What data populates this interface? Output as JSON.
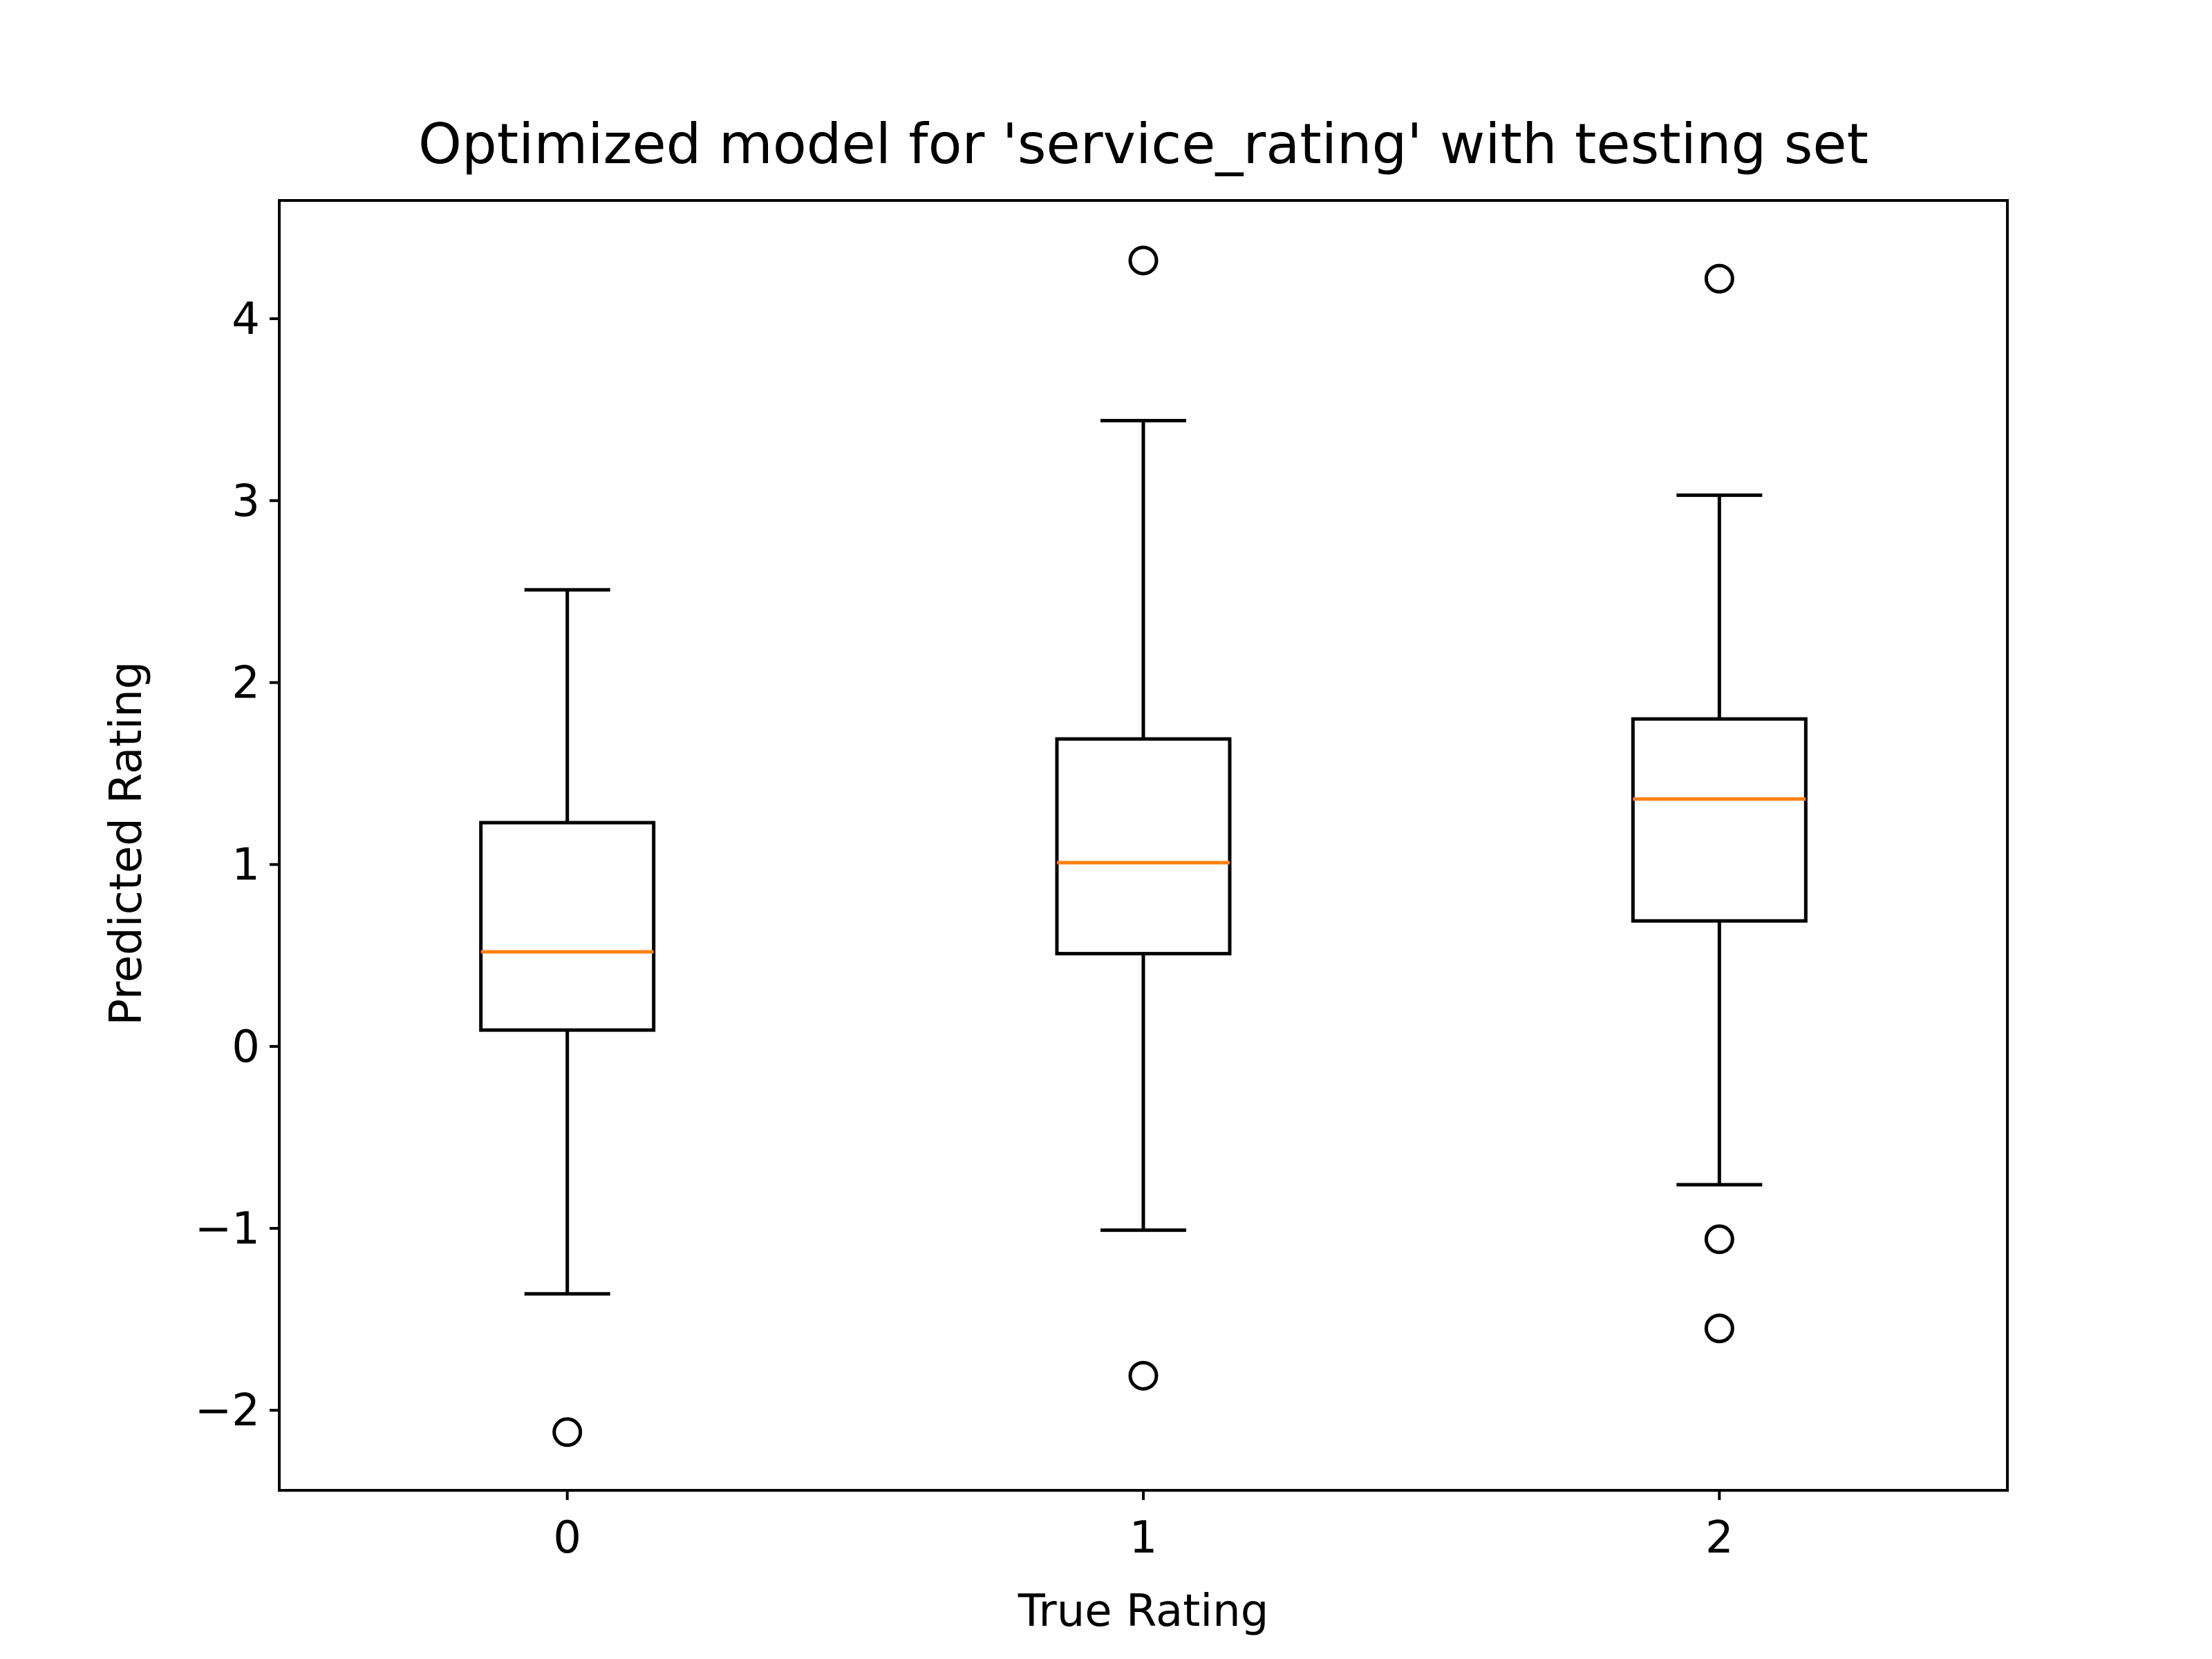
{
  "chart_data": {
    "type": "boxplot",
    "title": "Optimized model for 'service_rating' with testing set",
    "xlabel": "True Rating",
    "ylabel": "Predicted Rating",
    "categories": [
      "0",
      "1",
      "2"
    ],
    "boxes": [
      {
        "category": "0",
        "whisker_low": -1.36,
        "q1": 0.09,
        "median": 0.52,
        "q3": 1.23,
        "whisker_high": 2.51,
        "outliers": [
          -2.12
        ]
      },
      {
        "category": "1",
        "whisker_low": -1.01,
        "q1": 0.51,
        "median": 1.01,
        "q3": 1.69,
        "whisker_high": 3.44,
        "outliers": [
          -1.81,
          4.32
        ]
      },
      {
        "category": "2",
        "whisker_low": -0.76,
        "q1": 0.69,
        "median": 1.36,
        "q3": 1.8,
        "whisker_high": 3.03,
        "outliers": [
          -1.06,
          -1.55,
          4.22
        ]
      }
    ],
    "xlim": [
      -0.5,
      2.5
    ],
    "ylim": [
      -2.44,
      4.65
    ],
    "yticks": [
      -2,
      -1,
      0,
      1,
      2,
      3,
      4
    ],
    "ytick_labels": [
      "−2",
      "−1",
      "0",
      "1",
      "2",
      "3",
      "4"
    ],
    "grid": false,
    "colors": {
      "box": "#000000",
      "median": "#ff7f0e",
      "background": "#ffffff"
    }
  }
}
